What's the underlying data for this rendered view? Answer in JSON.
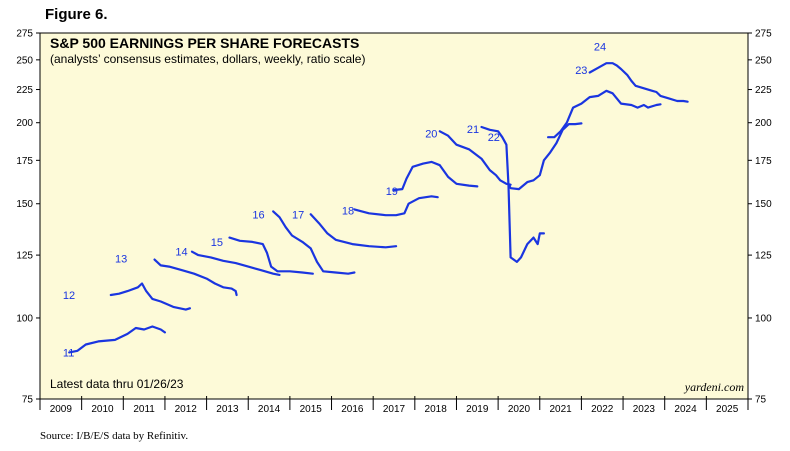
{
  "figure_label": "Figure 6.",
  "source": "Source: I/B/E/S data by Refinitiv.",
  "colors": {
    "plot_bg": "#fdfad8",
    "line": "#1a35e0",
    "axis": "#000000"
  },
  "chart_data": {
    "type": "line",
    "title": "S&P 500 EARNINGS PER SHARE FORECASTS",
    "subtitle": "(analysts’ consensus estimates, dollars, weekly, ratio scale)",
    "annotation": "Latest data thru 01/26/23",
    "brand": "yardeni.com",
    "y_scale": "log",
    "ylim": [
      75,
      275
    ],
    "y_ticks": [
      75,
      100,
      125,
      150,
      175,
      200,
      225,
      250,
      275
    ],
    "xlim": [
      2009,
      2026
    ],
    "x_tick_labels": [
      "2009",
      "2010",
      "2011",
      "2012",
      "2013",
      "2014",
      "2015",
      "2016",
      "2017",
      "2018",
      "2019",
      "2020",
      "2021",
      "2022",
      "2023",
      "2024",
      "2025"
    ],
    "series": [
      {
        "name": "11",
        "label_at": [
          2009.55,
          88.5
        ],
        "points": [
          [
            2009.7,
            88.5
          ],
          [
            2009.9,
            89
          ],
          [
            2010.1,
            91
          ],
          [
            2010.4,
            92
          ],
          [
            2010.8,
            92.5
          ],
          [
            2011.1,
            94.5
          ],
          [
            2011.3,
            96.5
          ],
          [
            2011.5,
            96
          ],
          [
            2011.7,
            97
          ],
          [
            2011.9,
            96
          ],
          [
            2012.0,
            95
          ]
        ]
      },
      {
        "name": "12",
        "label_at": [
          2009.55,
          108.5
        ],
        "points": [
          [
            2010.7,
            108.5
          ],
          [
            2010.9,
            109
          ],
          [
            2011.1,
            110
          ],
          [
            2011.35,
            111.5
          ],
          [
            2011.45,
            113
          ],
          [
            2011.55,
            110
          ],
          [
            2011.7,
            107
          ],
          [
            2011.9,
            106
          ],
          [
            2012.2,
            104
          ],
          [
            2012.5,
            103
          ],
          [
            2012.6,
            103.5
          ]
        ]
      },
      {
        "name": "13",
        "label_at": [
          2010.8,
          123.5
        ],
        "points": [
          [
            2011.75,
            123
          ],
          [
            2011.9,
            120.5
          ],
          [
            2012.1,
            120
          ],
          [
            2012.4,
            118.5
          ],
          [
            2012.7,
            117
          ],
          [
            2013.0,
            115
          ],
          [
            2013.2,
            113
          ],
          [
            2013.4,
            111.5
          ],
          [
            2013.6,
            111
          ],
          [
            2013.7,
            110
          ],
          [
            2013.72,
            108.5
          ]
        ]
      },
      {
        "name": "14",
        "label_at": [
          2012.25,
          126.5
        ],
        "points": [
          [
            2012.65,
            126.5
          ],
          [
            2012.8,
            125
          ],
          [
            2013.1,
            124
          ],
          [
            2013.4,
            122.5
          ],
          [
            2013.7,
            121.5
          ],
          [
            2014.0,
            120
          ],
          [
            2014.3,
            118.5
          ],
          [
            2014.6,
            117
          ],
          [
            2014.75,
            116.5
          ]
        ]
      },
      {
        "name": "15",
        "label_at": [
          2013.1,
          131
        ],
        "points": [
          [
            2013.55,
            133
          ],
          [
            2013.8,
            131.5
          ],
          [
            2014.1,
            131
          ],
          [
            2014.35,
            130
          ],
          [
            2014.45,
            126
          ],
          [
            2014.55,
            120
          ],
          [
            2014.7,
            118
          ],
          [
            2015.0,
            118
          ],
          [
            2015.3,
            117.5
          ],
          [
            2015.55,
            117
          ]
        ]
      },
      {
        "name": "16",
        "label_at": [
          2014.1,
          144.5
        ],
        "points": [
          [
            2014.6,
            146
          ],
          [
            2014.75,
            143
          ],
          [
            2014.9,
            138
          ],
          [
            2015.05,
            134
          ],
          [
            2015.3,
            131
          ],
          [
            2015.5,
            128
          ],
          [
            2015.65,
            122
          ],
          [
            2015.8,
            118
          ],
          [
            2016.1,
            117.5
          ],
          [
            2016.4,
            117
          ],
          [
            2016.55,
            117.5
          ]
        ]
      },
      {
        "name": "17",
        "label_at": [
          2015.05,
          144.5
        ],
        "points": [
          [
            2015.5,
            144.5
          ],
          [
            2015.7,
            140
          ],
          [
            2015.9,
            135
          ],
          [
            2016.1,
            132
          ],
          [
            2016.5,
            130
          ],
          [
            2016.9,
            129
          ],
          [
            2017.3,
            128.5
          ],
          [
            2017.55,
            129
          ]
        ]
      },
      {
        "name": "18",
        "label_at": [
          2016.25,
          146.5
        ],
        "points": [
          [
            2016.55,
            147
          ],
          [
            2016.9,
            145
          ],
          [
            2017.3,
            144
          ],
          [
            2017.55,
            144
          ],
          [
            2017.75,
            145
          ],
          [
            2017.85,
            150
          ],
          [
            2018.1,
            153
          ],
          [
            2018.4,
            154
          ],
          [
            2018.55,
            153.5
          ]
        ]
      },
      {
        "name": "19",
        "label_at": [
          2017.3,
          157
        ],
        "points": [
          [
            2017.5,
            157.5
          ],
          [
            2017.7,
            158
          ],
          [
            2017.8,
            164
          ],
          [
            2017.95,
            171
          ],
          [
            2018.2,
            173
          ],
          [
            2018.4,
            174
          ],
          [
            2018.6,
            172
          ],
          [
            2018.8,
            165
          ],
          [
            2019.0,
            161
          ],
          [
            2019.3,
            160
          ],
          [
            2019.5,
            159.5
          ]
        ]
      },
      {
        "name": "20",
        "label_at": [
          2018.25,
          192.5
        ],
        "points": [
          [
            2018.6,
            194
          ],
          [
            2018.8,
            191
          ],
          [
            2019.0,
            185
          ],
          [
            2019.3,
            182
          ],
          [
            2019.6,
            176
          ],
          [
            2019.8,
            169
          ],
          [
            2019.95,
            166
          ],
          [
            2020.05,
            163
          ],
          [
            2020.2,
            161
          ],
          [
            2020.3,
            160.5
          ]
        ]
      },
      {
        "name": "21",
        "label_at": [
          2019.25,
          195.5
        ],
        "points": [
          [
            2019.6,
            197
          ],
          [
            2019.8,
            195
          ],
          [
            2020.0,
            194
          ],
          [
            2020.1,
            190
          ],
          [
            2020.2,
            185
          ],
          [
            2020.25,
            160
          ],
          [
            2020.3,
            124
          ],
          [
            2020.45,
            122
          ],
          [
            2020.55,
            124
          ],
          [
            2020.7,
            130
          ],
          [
            2020.85,
            133
          ],
          [
            2020.95,
            130
          ],
          [
            2021.0,
            135
          ],
          [
            2021.1,
            135
          ]
        ]
      },
      {
        "name": "22",
        "label_at": [
          2019.75,
          190
        ],
        "points": [
          [
            2020.25,
            161
          ],
          [
            2020.3,
            158.5
          ],
          [
            2020.5,
            158
          ],
          [
            2020.7,
            162
          ],
          [
            2020.85,
            163
          ],
          [
            2021.0,
            166
          ],
          [
            2021.1,
            175
          ],
          [
            2021.25,
            180
          ],
          [
            2021.4,
            186
          ],
          [
            2021.55,
            195
          ],
          [
            2021.7,
            199
          ],
          [
            2021.85,
            199
          ],
          [
            2022.0,
            199.5
          ]
        ]
      },
      {
        "name": "23",
        "label_at": [
          2021.85,
          241
        ],
        "points": [
          [
            2021.2,
            190
          ],
          [
            2021.35,
            190
          ],
          [
            2021.5,
            194
          ],
          [
            2021.65,
            200
          ],
          [
            2021.8,
            211
          ],
          [
            2022.0,
            214
          ],
          [
            2022.2,
            219
          ],
          [
            2022.4,
            220
          ],
          [
            2022.6,
            224
          ],
          [
            2022.75,
            222
          ],
          [
            2022.85,
            218
          ],
          [
            2022.95,
            214
          ],
          [
            2023.2,
            213
          ],
          [
            2023.35,
            211
          ],
          [
            2023.5,
            213
          ],
          [
            2023.6,
            211
          ],
          [
            2023.8,
            213
          ],
          [
            2023.9,
            213.5
          ]
        ]
      },
      {
        "name": "24",
        "label_at": [
          2022.3,
          262
        ],
        "points": [
          [
            2022.2,
            239
          ],
          [
            2022.4,
            243
          ],
          [
            2022.6,
            247
          ],
          [
            2022.75,
            247
          ],
          [
            2022.85,
            245
          ],
          [
            2022.95,
            242
          ],
          [
            2023.1,
            237
          ],
          [
            2023.2,
            232
          ],
          [
            2023.3,
            228
          ],
          [
            2023.5,
            226
          ],
          [
            2023.7,
            224
          ],
          [
            2023.8,
            223
          ],
          [
            2023.9,
            220
          ],
          [
            2024.1,
            218
          ],
          [
            2024.3,
            216
          ],
          [
            2024.45,
            216
          ],
          [
            2024.55,
            215.5
          ]
        ]
      }
    ]
  }
}
